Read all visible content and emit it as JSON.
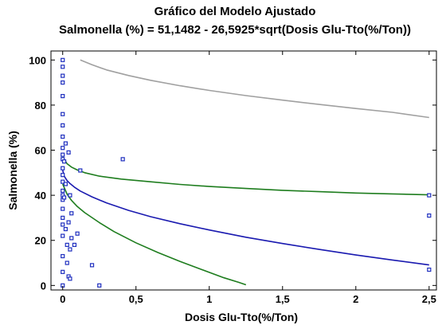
{
  "chart_data": {
    "type": "scatter",
    "title": "Gráfico del Modelo Ajustado",
    "subtitle": "Salmonella (%) = 51,1482 - 26,5925*sqrt(Dosis Glu-Tto(%/Ton))",
    "xlabel": "Dosis Glu-Tto(%/Ton)",
    "ylabel": "Salmonella (%)",
    "xlim": [
      -0.08,
      2.55
    ],
    "ylim": [
      -2,
      104
    ],
    "x_ticks": [
      0,
      0.5,
      1,
      1.5,
      2,
      2.5
    ],
    "x_tick_labels": [
      "0",
      "0,5",
      "1",
      "1,5",
      "2",
      "2,5"
    ],
    "y_ticks": [
      0,
      20,
      40,
      60,
      80,
      100
    ],
    "y_tick_labels": [
      "0",
      "20",
      "40",
      "60",
      "80",
      "100"
    ],
    "grid": false,
    "model": {
      "intercept": 51.1482,
      "slope": -26.5925,
      "transform": "sqrt"
    },
    "series": [
      {
        "role": "observed",
        "color": "#1f2fbf",
        "points": [
          [
            0,
            100
          ],
          [
            0,
            97
          ],
          [
            0,
            93
          ],
          [
            0,
            90
          ],
          [
            0,
            84
          ],
          [
            0,
            76
          ],
          [
            0,
            71
          ],
          [
            0,
            66
          ],
          [
            0,
            61
          ],
          [
            0,
            58
          ],
          [
            0,
            56
          ],
          [
            0,
            52
          ],
          [
            0,
            49
          ],
          [
            0,
            46
          ],
          [
            0,
            42
          ],
          [
            0,
            40
          ],
          [
            0,
            38
          ],
          [
            0,
            34
          ],
          [
            0,
            30
          ],
          [
            0,
            27
          ],
          [
            0,
            22
          ],
          [
            0,
            13
          ],
          [
            0,
            6
          ],
          [
            0,
            0
          ],
          [
            0.01,
            39
          ],
          [
            0.01,
            55
          ],
          [
            0.02,
            63
          ],
          [
            0.02,
            45
          ],
          [
            0.02,
            25
          ],
          [
            0.03,
            18
          ],
          [
            0.03,
            10
          ],
          [
            0.04,
            59
          ],
          [
            0.04,
            28
          ],
          [
            0.04,
            4
          ],
          [
            0.05,
            3
          ],
          [
            0.05,
            40
          ],
          [
            0.05,
            16
          ],
          [
            0.06,
            32
          ],
          [
            0.06,
            21
          ],
          [
            0.08,
            18
          ],
          [
            0.1,
            23
          ],
          [
            0.12,
            51
          ],
          [
            0.2,
            9
          ],
          [
            0.25,
            0
          ],
          [
            0.41,
            56
          ],
          [
            2.5,
            40
          ],
          [
            2.5,
            31
          ],
          [
            2.5,
            7
          ]
        ]
      },
      {
        "role": "fitted",
        "color": "#1a1ab0",
        "x": [
          0,
          0.01,
          0.03,
          0.05,
          0.08,
          0.12,
          0.2,
          0.3,
          0.45,
          0.6,
          0.8,
          1,
          1.25,
          1.5,
          1.75,
          2,
          2.25,
          2.5
        ],
        "y": [
          51.1,
          48.5,
          46.5,
          45.2,
          43.6,
          41.9,
          39.3,
          36.6,
          33.3,
          30.5,
          27.4,
          24.6,
          21.4,
          18.6,
          16,
          13.5,
          11.3,
          9.1
        ]
      },
      {
        "role": "confidence-upper",
        "color": "#1e7d1e",
        "x": [
          0,
          0.03,
          0.06,
          0.1,
          0.15,
          0.25,
          0.4,
          0.6,
          0.8,
          1,
          1.25,
          1.5,
          1.75,
          2,
          2.25,
          2.5
        ],
        "y": [
          57,
          54,
          52.5,
          51.2,
          50,
          48.5,
          47.2,
          46,
          44.8,
          43.9,
          43,
          42.2,
          41.6,
          41,
          40.6,
          40.2
        ]
      },
      {
        "role": "confidence-lower",
        "color": "#1e7d1e",
        "x": [
          0,
          0.03,
          0.06,
          0.1,
          0.15,
          0.25,
          0.35,
          0.5,
          0.65,
          0.8,
          0.95,
          1.1,
          1.2,
          1.25
        ],
        "y": [
          45,
          40.5,
          37.7,
          35,
          32.3,
          27.9,
          23.9,
          18.9,
          14.6,
          10.7,
          7,
          3.4,
          1.4,
          0.3
        ]
      },
      {
        "role": "prediction-upper",
        "color": "#a0a0a0",
        "x": [
          0.12,
          0.2,
          0.3,
          0.45,
          0.6,
          0.8,
          1,
          1.25,
          1.5,
          1.75,
          2,
          2.25,
          2.5
        ],
        "y": [
          100,
          97.9,
          95.6,
          93.1,
          91,
          88.6,
          86.5,
          84.2,
          82.2,
          80.3,
          78.5,
          76.8,
          74.5
        ]
      }
    ]
  }
}
